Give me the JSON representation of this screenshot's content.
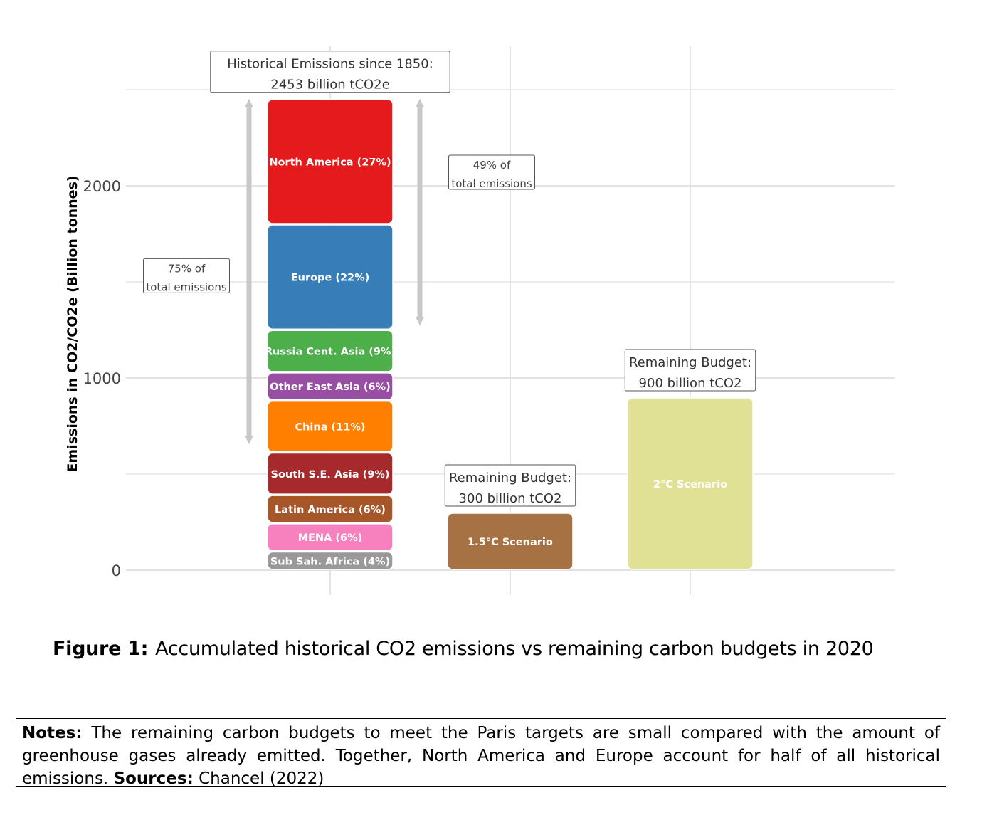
{
  "chart_data": {
    "type": "bar",
    "stacked": true,
    "ylabel": "Emissions in CO2/CO2e (Billion tonnes)",
    "yticks": [
      0,
      1000,
      2000
    ],
    "ylim": [
      0,
      2500
    ],
    "grid": true,
    "bars": [
      {
        "segments": [
          {
            "label": "Sub Sah. Africa (4%)",
            "value": 98,
            "color": "#999999"
          },
          {
            "label": "MENA (6%)",
            "value": 147,
            "color": "#f781bf"
          },
          {
            "label": "Latin America (6%)",
            "value": 147,
            "color": "#a65628"
          },
          {
            "label": "South S.E. Asia (9%)",
            "value": 221,
            "color": "#a6292c"
          },
          {
            "label": "China (11%)",
            "value": 270,
            "color": "#ff7f00"
          },
          {
            "label": "Other East Asia (6%)",
            "value": 147,
            "color": "#984ea3"
          },
          {
            "label": "Russia Cent. Asia (9%)",
            "value": 221,
            "color": "#4daf4a"
          },
          {
            "label": "Europe (22%)",
            "value": 549,
            "color": "#377eb8"
          },
          {
            "label": "North America (27%)",
            "value": 653,
            "color": "#e41a1c"
          }
        ],
        "annotation": [
          "Historical Emissions since 1850:",
          "2453  billion tCO2e"
        ]
      },
      {
        "segments": [
          {
            "label": "1.5°C Scenario",
            "value": 300,
            "color": "#a67243"
          }
        ],
        "annotation": [
          "Remaining Budget:",
          "300 billion tCO2"
        ]
      },
      {
        "segments": [
          {
            "label": "2°C Scenario",
            "value": 900,
            "color": "#e0e194"
          }
        ],
        "annotation": [
          "Remaining Budget:",
          "900 billion tCO2"
        ]
      }
    ],
    "brackets": [
      {
        "label": [
          "75% of",
          "total emissions"
        ],
        "from": 655,
        "to": 2453,
        "side": "left"
      },
      {
        "label": [
          "49% of",
          "total emissions"
        ],
        "from": 1273,
        "to": 2453,
        "side": "right"
      }
    ]
  },
  "caption": {
    "label": "Figure 1:",
    "text": "Accumulated historical CO2 emissions vs remaining carbon budgets in 2020"
  },
  "notes": {
    "notes_label": "Notes:",
    "notes_text": "The remaining carbon budgets to meet the Paris targets are small compared with the amount of greenhouse gases already emitted.  Together, North America and Europe account for half of all historical emissions.",
    "sources_label": "Sources:",
    "sources_text": "Chancel (2022)"
  }
}
